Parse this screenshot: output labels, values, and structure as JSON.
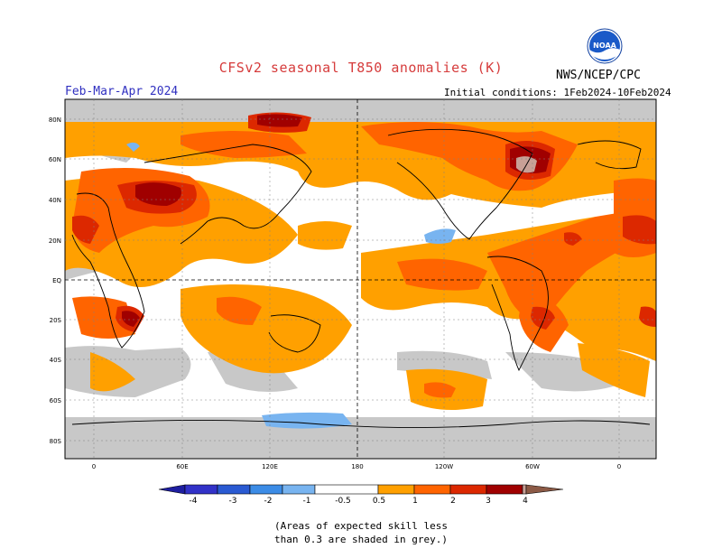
{
  "header": {
    "title": "CFSv2 seasonal T850 anomalies (K)",
    "season": "Feb-Mar-Apr 2024",
    "initial_conditions": "Initial conditions: 1Feb2024-10Feb2024",
    "agency": "NWS/NCEP/CPC",
    "logo_text": "NOAA"
  },
  "map": {
    "lat_labels": [
      "80N",
      "60N",
      "40N",
      "20N",
      "EQ",
      "20S",
      "40S",
      "60S",
      "80S"
    ],
    "lon_labels": [
      "0",
      "60E",
      "120E",
      "180",
      "120W",
      "60W",
      "0"
    ]
  },
  "colorbar": {
    "labels": [
      "-4",
      "-3",
      "-2",
      "-1",
      "-0.5",
      "0.5",
      "1",
      "2",
      "3",
      "4"
    ],
    "colors": {
      "below_-4": "#1e1ea0",
      "-4_-3": "#3232c8",
      "-3_-2": "#2a5ad2",
      "-2_-1": "#3c8ce6",
      "-1_-0.5": "#78b4f0",
      "-0.5_0.5": "#ffffff",
      "0.5_1": "#ffa000",
      "1_2": "#ff6400",
      "2_3": "#dc2800",
      "3_4": "#a00000",
      "4_5": "#c8a096",
      "above_5": "#8c5a46"
    }
  },
  "legend": {
    "skill_note_line1": "(Areas of expected skill less",
    "skill_note_line2": "than 0.3 are shaded in grey.)",
    "low_skill_color": "#c8c8c8"
  }
}
